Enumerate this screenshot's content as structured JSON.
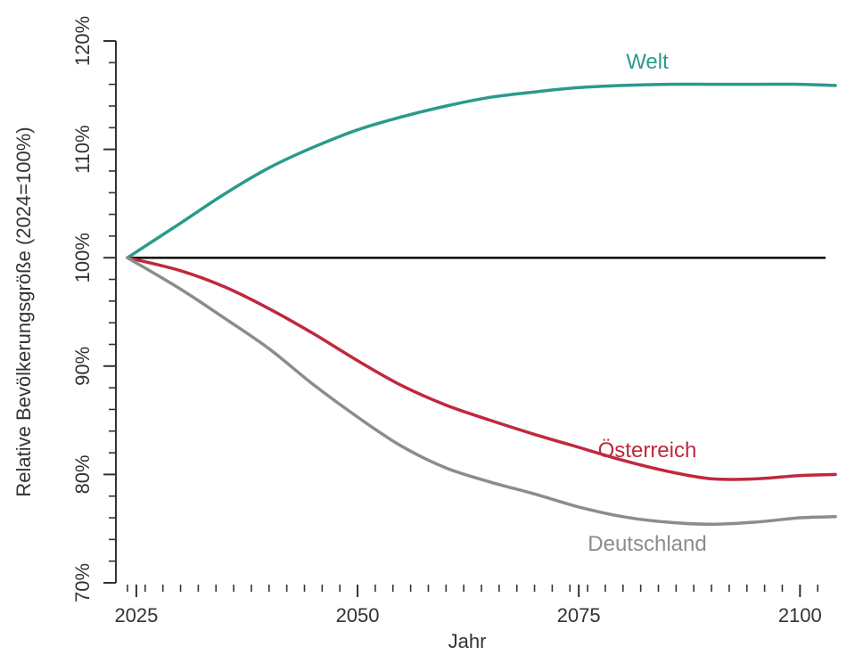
{
  "chart_data": {
    "type": "line",
    "title": "",
    "xlabel": "Jahr",
    "ylabel": "Relative Bevölkerungsgröße (2024=100%)",
    "xlim": [
      2024,
      2104
    ],
    "ylim": [
      70,
      120
    ],
    "x_ticks": [
      2025,
      2050,
      2075,
      2100
    ],
    "x_tick_labels": [
      "2025",
      "2050",
      "2075",
      "2100"
    ],
    "y_ticks": [
      70,
      80,
      90,
      100,
      110,
      120
    ],
    "y_tick_labels": [
      "70%",
      "80%",
      "90%",
      "100%",
      "110%",
      "120%"
    ],
    "reference_line": {
      "y": 100,
      "color": "#000000"
    },
    "series": [
      {
        "name": "Welt",
        "color": "#2a9a8c",
        "x": [
          2024,
          2030,
          2035,
          2040,
          2045,
          2050,
          2055,
          2060,
          2065,
          2070,
          2075,
          2080,
          2085,
          2090,
          2095,
          2100,
          2104
        ],
        "values": [
          100,
          103.2,
          105.9,
          108.3,
          110.2,
          111.8,
          113.0,
          114.0,
          114.8,
          115.3,
          115.7,
          115.9,
          116.0,
          116.0,
          116.0,
          116.0,
          115.9
        ]
      },
      {
        "name": "Österreich",
        "color": "#c0283d",
        "x": [
          2024,
          2030,
          2035,
          2040,
          2045,
          2050,
          2055,
          2060,
          2065,
          2070,
          2075,
          2080,
          2085,
          2090,
          2095,
          2100,
          2104
        ],
        "values": [
          100,
          98.8,
          97.3,
          95.3,
          93.0,
          90.5,
          88.2,
          86.4,
          85.0,
          83.7,
          82.5,
          81.3,
          80.3,
          79.6,
          79.6,
          79.9,
          80.0
        ]
      },
      {
        "name": "Deutschland",
        "color": "#8c8c8c",
        "x": [
          2024,
          2030,
          2035,
          2040,
          2045,
          2050,
          2055,
          2060,
          2065,
          2070,
          2075,
          2080,
          2085,
          2090,
          2095,
          2100,
          2104
        ],
        "values": [
          100,
          97.1,
          94.4,
          91.6,
          88.3,
          85.3,
          82.6,
          80.6,
          79.3,
          78.2,
          77.0,
          76.1,
          75.6,
          75.4,
          75.6,
          76.0,
          76.1
        ]
      }
    ]
  }
}
